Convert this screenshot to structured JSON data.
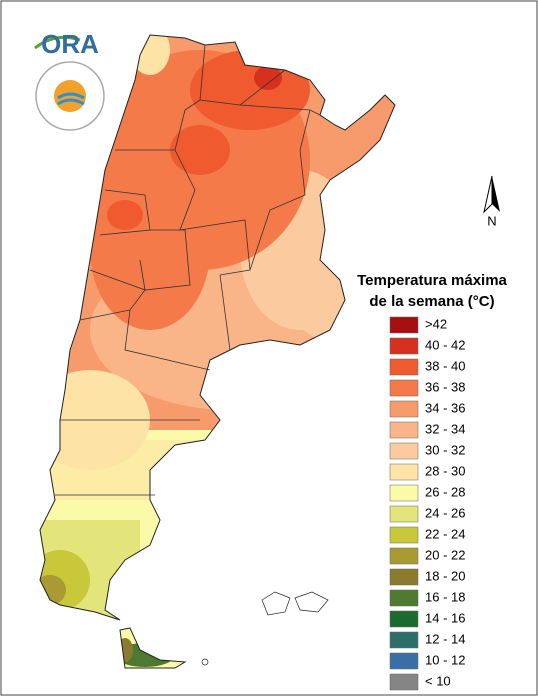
{
  "logo": {
    "text": "ORA"
  },
  "north_label": "N",
  "legend": {
    "title_lines": [
      "Temperatura máxima",
      "de la semana (°C)"
    ],
    "items": [
      {
        "label": ">42",
        "color": "#a50f0f"
      },
      {
        "label": "40 - 42",
        "color": "#d7301f"
      },
      {
        "label": "38 - 40",
        "color": "#ef5a2e"
      },
      {
        "label": "36 - 38",
        "color": "#f47a4a"
      },
      {
        "label": "34 - 36",
        "color": "#f79a6c"
      },
      {
        "label": "32 - 34",
        "color": "#f9b488"
      },
      {
        "label": "30 - 32",
        "color": "#fbcb9f"
      },
      {
        "label": "28 - 30",
        "color": "#fde3a5"
      },
      {
        "label": "26 - 28",
        "color": "#fafaa8"
      },
      {
        "label": "24 - 26",
        "color": "#e3e47a"
      },
      {
        "label": "22 - 24",
        "color": "#c8c83a"
      },
      {
        "label": "20 - 22",
        "color": "#a99a33"
      },
      {
        "label": "18 - 20",
        "color": "#8c7a2e"
      },
      {
        "label": "16 - 18",
        "color": "#4d7a2e"
      },
      {
        "label": "14 - 16",
        "color": "#1c6b2e"
      },
      {
        "label": "12 - 14",
        "color": "#2e6e6a"
      },
      {
        "label": "10 - 12",
        "color": "#3a6ea5"
      },
      {
        "label": "< 10",
        "color": "#858585"
      }
    ]
  }
}
